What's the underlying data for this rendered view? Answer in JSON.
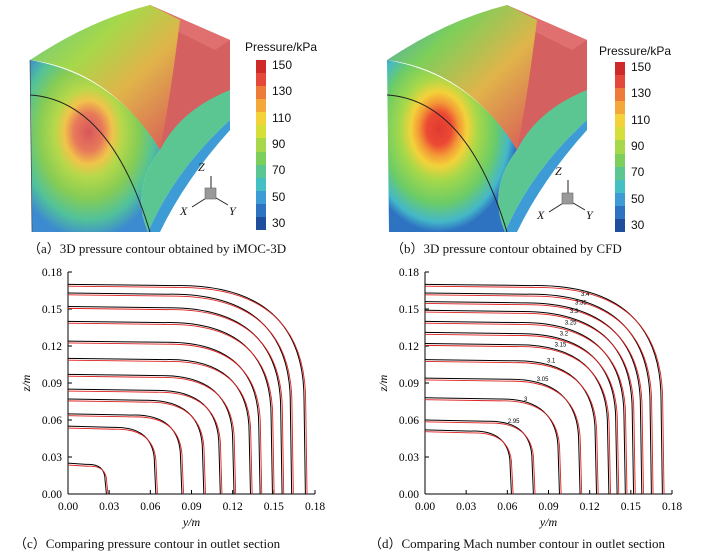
{
  "figure": {
    "panels": [
      {
        "caption": "（a）3D pressure contour obtained by iMOC-3D",
        "colorbar": {
          "title": "Pressure/kPa",
          "ticks": [
            "150",
            "130",
            "110",
            "90",
            "70",
            "50",
            "30"
          ],
          "colors": [
            "#1f4e9c",
            "#2e72c2",
            "#3d9bd6",
            "#44c0c4",
            "#5cc692",
            "#7ccf5a",
            "#a6d84a",
            "#d6df3a",
            "#f3d23a",
            "#f4a83a",
            "#ef7b3a",
            "#e4483a",
            "#cf2a2a"
          ]
        },
        "triad": {
          "z": "Z",
          "x": "X",
          "y": "Y"
        }
      },
      {
        "caption": "（b）3D pressure contour obtained by CFD",
        "colorbar": {
          "title": "Pressure/kPa",
          "ticks": [
            "150",
            "130",
            "110",
            "90",
            "70",
            "50",
            "30"
          ],
          "colors": [
            "#1f4e9c",
            "#2e72c2",
            "#3d9bd6",
            "#44c0c4",
            "#5cc692",
            "#7ccf5a",
            "#a6d84a",
            "#d6df3a",
            "#f3d23a",
            "#f4a83a",
            "#ef7b3a",
            "#e4483a",
            "#cf2a2a"
          ]
        },
        "triad": {
          "z": "Z",
          "x": "X",
          "y": "Y"
        }
      },
      {
        "caption": "（c）Comparing pressure contour in outlet section"
      },
      {
        "caption": "（d）Comparing Mach number contour in outlet section"
      }
    ]
  },
  "chart_data": [
    {
      "type": "line",
      "xlabel": "y/m",
      "ylabel": "z/m",
      "xlim": [
        0,
        0.18
      ],
      "ylim": [
        0,
        0.18
      ],
      "xticks": [
        "0.00",
        "0.03",
        "0.06",
        "0.09",
        "0.12",
        "0.15",
        "0.18"
      ],
      "yticks": [
        "0.00",
        "0.03",
        "0.06",
        "0.09",
        "0.12",
        "0.15",
        "0.18"
      ],
      "series_colors": {
        "reference": "#000000",
        "comparison": "#e02020"
      },
      "contours": [
        {
          "label": "",
          "z0": 0.17,
          "y0": 0.172
        },
        {
          "label": "",
          "z0": 0.163,
          "y0": 0.162
        },
        {
          "label": "",
          "z0": 0.152,
          "y0": 0.155
        },
        {
          "label": "",
          "z0": 0.14,
          "y0": 0.148
        },
        {
          "label": "",
          "z0": 0.124,
          "y0": 0.139
        },
        {
          "label": "",
          "z0": 0.11,
          "y0": 0.132
        },
        {
          "label": "",
          "z0": 0.097,
          "y0": 0.12
        },
        {
          "label": "",
          "z0": 0.085,
          "y0": 0.11
        },
        {
          "label": "",
          "z0": 0.077,
          "y0": 0.098
        },
        {
          "label": "",
          "z0": 0.065,
          "y0": 0.082
        },
        {
          "label": "",
          "z0": 0.055,
          "y0": 0.063
        },
        {
          "label": "",
          "z0": 0.025,
          "y0": 0.027
        }
      ]
    },
    {
      "type": "line",
      "xlabel": "y/m",
      "ylabel": "z/m",
      "xlim": [
        0,
        0.18
      ],
      "ylim": [
        0,
        0.18
      ],
      "xticks": [
        "0.00",
        "0.03",
        "0.06",
        "0.09",
        "0.12",
        "0.15",
        "0.18"
      ],
      "yticks": [
        "0.00",
        "0.03",
        "0.06",
        "0.09",
        "0.12",
        "0.15",
        "0.18"
      ],
      "series_colors": {
        "reference": "#000000",
        "comparison": "#e02020"
      },
      "contours": [
        {
          "label": "",
          "z0": 0.17,
          "y0": 0.172
        },
        {
          "label": "3.4",
          "z0": 0.163,
          "y0": 0.164
        },
        {
          "label": "3.35",
          "z0": 0.156,
          "y0": 0.157
        },
        {
          "label": "3.3",
          "z0": 0.149,
          "y0": 0.151
        },
        {
          "label": "3.25",
          "z0": 0.14,
          "y0": 0.145
        },
        {
          "label": "3.2",
          "z0": 0.131,
          "y0": 0.139
        },
        {
          "label": "3.15",
          "z0": 0.122,
          "y0": 0.133
        },
        {
          "label": "3.1",
          "z0": 0.109,
          "y0": 0.124
        },
        {
          "label": "3.05",
          "z0": 0.094,
          "y0": 0.112
        },
        {
          "label": "3",
          "z0": 0.078,
          "y0": 0.097
        },
        {
          "label": "2.95",
          "z0": 0.06,
          "y0": 0.078
        },
        {
          "label": "",
          "z0": 0.052,
          "y0": 0.062
        }
      ]
    }
  ]
}
